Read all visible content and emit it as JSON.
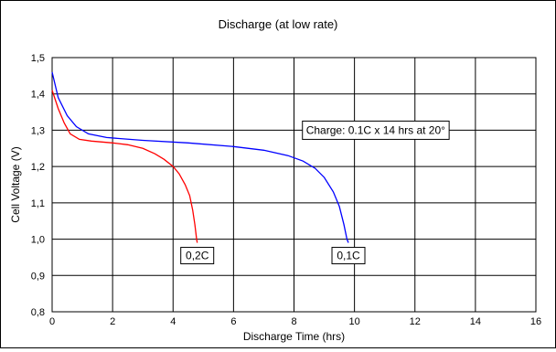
{
  "chart_data": {
    "type": "line",
    "title": "Discharge (at low rate)",
    "xlabel": "Discharge Time (hrs)",
    "ylabel": "Cell Voltage (V)",
    "xlim": [
      0,
      16
    ],
    "ylim": [
      0.8,
      1.5
    ],
    "x_ticks": [
      "0",
      "2",
      "4",
      "6",
      "8",
      "10",
      "12",
      "14",
      "16"
    ],
    "y_ticks": [
      "0,8",
      "0,9",
      "1,0",
      "1,1",
      "1,2",
      "1,3",
      "1,4",
      "1,5"
    ],
    "grid": true,
    "legend": "none",
    "annotation": "Charge: 0.1C x 14 hrs at 20°",
    "series": [
      {
        "name": "0,2C",
        "color": "#ff0000",
        "points": [
          [
            0,
            1.41
          ],
          [
            0.2,
            1.36
          ],
          [
            0.4,
            1.32
          ],
          [
            0.6,
            1.29
          ],
          [
            0.9,
            1.275
          ],
          [
            1.3,
            1.27
          ],
          [
            2,
            1.265
          ],
          [
            2.5,
            1.26
          ],
          [
            3,
            1.25
          ],
          [
            3.4,
            1.235
          ],
          [
            3.7,
            1.22
          ],
          [
            4,
            1.2
          ],
          [
            4.2,
            1.18
          ],
          [
            4.4,
            1.15
          ],
          [
            4.55,
            1.12
          ],
          [
            4.65,
            1.08
          ],
          [
            4.72,
            1.04
          ],
          [
            4.78,
            1.0
          ],
          [
            4.8,
            0.99
          ]
        ]
      },
      {
        "name": "0,1C",
        "color": "#0000ff",
        "points": [
          [
            0,
            1.46
          ],
          [
            0.2,
            1.39
          ],
          [
            0.5,
            1.34
          ],
          [
            0.8,
            1.31
          ],
          [
            1.2,
            1.29
          ],
          [
            1.8,
            1.28
          ],
          [
            3,
            1.272
          ],
          [
            4.5,
            1.265
          ],
          [
            6,
            1.255
          ],
          [
            7,
            1.245
          ],
          [
            7.8,
            1.23
          ],
          [
            8.3,
            1.215
          ],
          [
            8.7,
            1.195
          ],
          [
            9.0,
            1.17
          ],
          [
            9.3,
            1.13
          ],
          [
            9.5,
            1.09
          ],
          [
            9.65,
            1.04
          ],
          [
            9.75,
            1.0
          ],
          [
            9.8,
            0.99
          ]
        ]
      }
    ]
  }
}
